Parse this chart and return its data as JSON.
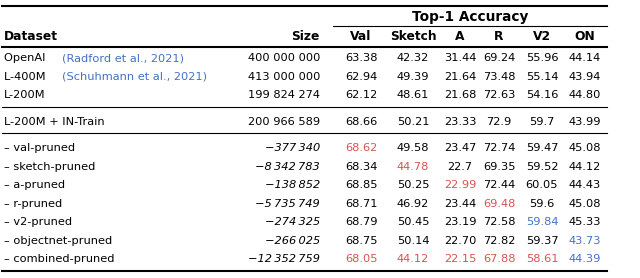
{
  "title": "Top-1 Accuracy",
  "col_headers": [
    "Dataset",
    "Size",
    "Val",
    "Sketch",
    "A",
    "R",
    "V2",
    "ON"
  ],
  "rows": [
    {
      "dataset_parts": [
        {
          "text": "OpenAI ",
          "color": "black"
        },
        {
          "text": "(Radford et al., 2021)",
          "color": "#4472C4"
        }
      ],
      "size": "400 000 000",
      "size_italic": false,
      "vals": [
        "63.38",
        "42.32",
        "31.44",
        "69.24",
        "55.96",
        "44.14"
      ],
      "val_colors": [
        "black",
        "black",
        "black",
        "black",
        "black",
        "black"
      ],
      "group": "A"
    },
    {
      "dataset_parts": [
        {
          "text": "L-400M ",
          "color": "black"
        },
        {
          "text": "(Schuhmann et al., 2021)",
          "color": "#4472C4"
        }
      ],
      "size": "413 000 000",
      "size_italic": false,
      "vals": [
        "62.94",
        "49.39",
        "21.64",
        "73.48",
        "55.14",
        "43.94"
      ],
      "val_colors": [
        "black",
        "black",
        "black",
        "black",
        "black",
        "black"
      ],
      "group": "A"
    },
    {
      "dataset_parts": [
        {
          "text": "L-200M",
          "color": "black"
        }
      ],
      "size": "199 824 274",
      "size_italic": false,
      "vals": [
        "62.12",
        "48.61",
        "21.68",
        "72.63",
        "54.16",
        "44.80"
      ],
      "val_colors": [
        "black",
        "black",
        "black",
        "black",
        "black",
        "black"
      ],
      "group": "A"
    },
    {
      "dataset_parts": [
        {
          "text": "L-200M + IN-Train",
          "color": "black"
        }
      ],
      "size": "200 966 589",
      "size_italic": false,
      "vals": [
        "68.66",
        "50.21",
        "23.33",
        "72.9",
        "59.7",
        "43.99"
      ],
      "val_colors": [
        "black",
        "black",
        "black",
        "black",
        "black",
        "black"
      ],
      "group": "B"
    },
    {
      "dataset_parts": [
        {
          "text": "– val-pruned",
          "color": "black"
        }
      ],
      "size": "−377 340",
      "size_italic": true,
      "vals": [
        "68.62",
        "49.58",
        "23.47",
        "72.74",
        "59.47",
        "45.08"
      ],
      "val_colors": [
        "#d9534f",
        "black",
        "black",
        "black",
        "black",
        "black"
      ],
      "group": "C"
    },
    {
      "dataset_parts": [
        {
          "text": "– sketch-pruned",
          "color": "black"
        }
      ],
      "size": "−8 342 783",
      "size_italic": true,
      "vals": [
        "68.34",
        "44.78",
        "22.7",
        "69.35",
        "59.52",
        "44.12"
      ],
      "val_colors": [
        "black",
        "#d9534f",
        "black",
        "black",
        "black",
        "black"
      ],
      "group": "C"
    },
    {
      "dataset_parts": [
        {
          "text": "– a-pruned",
          "color": "black"
        }
      ],
      "size": "−138 852",
      "size_italic": true,
      "vals": [
        "68.85",
        "50.25",
        "22.99",
        "72.44",
        "60.05",
        "44.43"
      ],
      "val_colors": [
        "black",
        "black",
        "#d9534f",
        "black",
        "black",
        "black"
      ],
      "group": "C"
    },
    {
      "dataset_parts": [
        {
          "text": "– r-pruned",
          "color": "black"
        }
      ],
      "size": "−5 735 749",
      "size_italic": true,
      "vals": [
        "68.71",
        "46.92",
        "23.44",
        "69.48",
        "59.6",
        "45.08"
      ],
      "val_colors": [
        "black",
        "black",
        "black",
        "#d9534f",
        "black",
        "black"
      ],
      "group": "C"
    },
    {
      "dataset_parts": [
        {
          "text": "– v2-pruned",
          "color": "black"
        }
      ],
      "size": "−274 325",
      "size_italic": true,
      "vals": [
        "68.79",
        "50.45",
        "23.19",
        "72.58",
        "59.84",
        "45.33"
      ],
      "val_colors": [
        "black",
        "black",
        "black",
        "black",
        "#4472C4",
        "black"
      ],
      "group": "C"
    },
    {
      "dataset_parts": [
        {
          "text": "– objectnet-pruned",
          "color": "black"
        }
      ],
      "size": "−266 025",
      "size_italic": true,
      "vals": [
        "68.75",
        "50.14",
        "22.70",
        "72.82",
        "59.37",
        "43.73"
      ],
      "val_colors": [
        "black",
        "black",
        "black",
        "black",
        "black",
        "#4472C4"
      ],
      "group": "C"
    },
    {
      "dataset_parts": [
        {
          "text": "– combined-pruned",
          "color": "black"
        }
      ],
      "size": "−12 352 759",
      "size_italic": true,
      "vals": [
        "68.05",
        "44.12",
        "22.15",
        "67.88",
        "58.61",
        "44.39"
      ],
      "val_colors": [
        "#d9534f",
        "#d9534f",
        "#d9534f",
        "#d9534f",
        "#d9534f",
        "#4472C4"
      ],
      "group": "C"
    }
  ],
  "figsize": [
    6.4,
    2.78
  ],
  "dpi": 100,
  "fs": 8.2,
  "hfs": 8.8
}
